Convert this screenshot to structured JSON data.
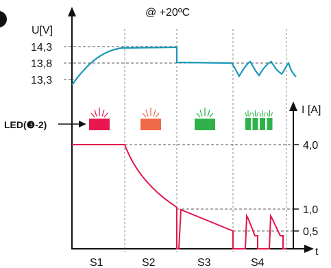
{
  "chart_data": [
    {
      "type": "line",
      "title": "@ +20ºC",
      "ylabel": "U[V]",
      "yticks": [
        "14,3",
        "13,8",
        "13,3"
      ],
      "ytick_values": [
        14.3,
        13.8,
        13.3
      ],
      "categories": [
        "S1",
        "S2",
        "S3",
        "S4"
      ],
      "series": [
        {
          "color": "#1b98b8",
          "points": [
            {
              "stage": "S1",
              "t": 0.0,
              "v": 13.3
            },
            {
              "stage": "S1",
              "t": 0.5,
              "v": 13.93
            },
            {
              "stage": "S1",
              "t": 1.0,
              "v": 14.25
            },
            {
              "stage": "S2",
              "t": 1.2,
              "v": 14.3
            },
            {
              "stage": "S2",
              "t": 2.0,
              "v": 14.3
            },
            {
              "stage": "S3",
              "t": 2.0,
              "v": 13.8
            },
            {
              "stage": "S3",
              "t": 3.0,
              "v": 13.78
            },
            {
              "stage": "S4",
              "t": 3.3,
              "v": 13.5
            },
            {
              "stage": "S4",
              "t": 3.5,
              "v": 13.75
            },
            {
              "stage": "S4",
              "t": 3.65,
              "v": 13.5
            },
            {
              "stage": "S4",
              "t": 3.8,
              "v": 13.75
            },
            {
              "stage": "S4",
              "t": 4.0,
              "v": 13.42
            }
          ]
        }
      ]
    },
    {
      "type": "line",
      "ylabel": "I [A]",
      "xlabel": "t",
      "yticks": [
        "4,0",
        "1,0",
        "0,5"
      ],
      "ytick_values": [
        4.0,
        1.0,
        0.5
      ],
      "categories": [
        "S1",
        "S2",
        "S3",
        "S4"
      ],
      "series": [
        {
          "color": "#e0184a",
          "points": [
            {
              "stage": "S1",
              "t": 0.0,
              "i": 4.0
            },
            {
              "stage": "S1",
              "t": 1.0,
              "i": 4.0
            },
            {
              "stage": "S2",
              "t": 1.25,
              "i": 2.6
            },
            {
              "stage": "S2",
              "t": 1.5,
              "i": 1.8
            },
            {
              "stage": "S2",
              "t": 2.0,
              "i": 1.0
            },
            {
              "stage": "S3",
              "t": 2.0,
              "i": 0.0
            },
            {
              "stage": "S3",
              "t": 2.05,
              "i": 0.95
            },
            {
              "stage": "S3",
              "t": 3.0,
              "i": 0.45
            },
            {
              "stage": "S4",
              "t": 3.2,
              "i": 0.9
            },
            {
              "stage": "S4",
              "t": 3.35,
              "i": 0.3
            },
            {
              "stage": "S4",
              "t": 3.7,
              "i": 0.9
            },
            {
              "stage": "S4",
              "t": 3.85,
              "i": 0.3
            }
          ]
        }
      ]
    }
  ],
  "led": {
    "label": "LED(",
    "ref": "❸-2",
    "close": ")",
    "colors": [
      "#e8174f",
      "#f06a4a",
      "#2fb24a",
      "#2fb24a"
    ]
  }
}
